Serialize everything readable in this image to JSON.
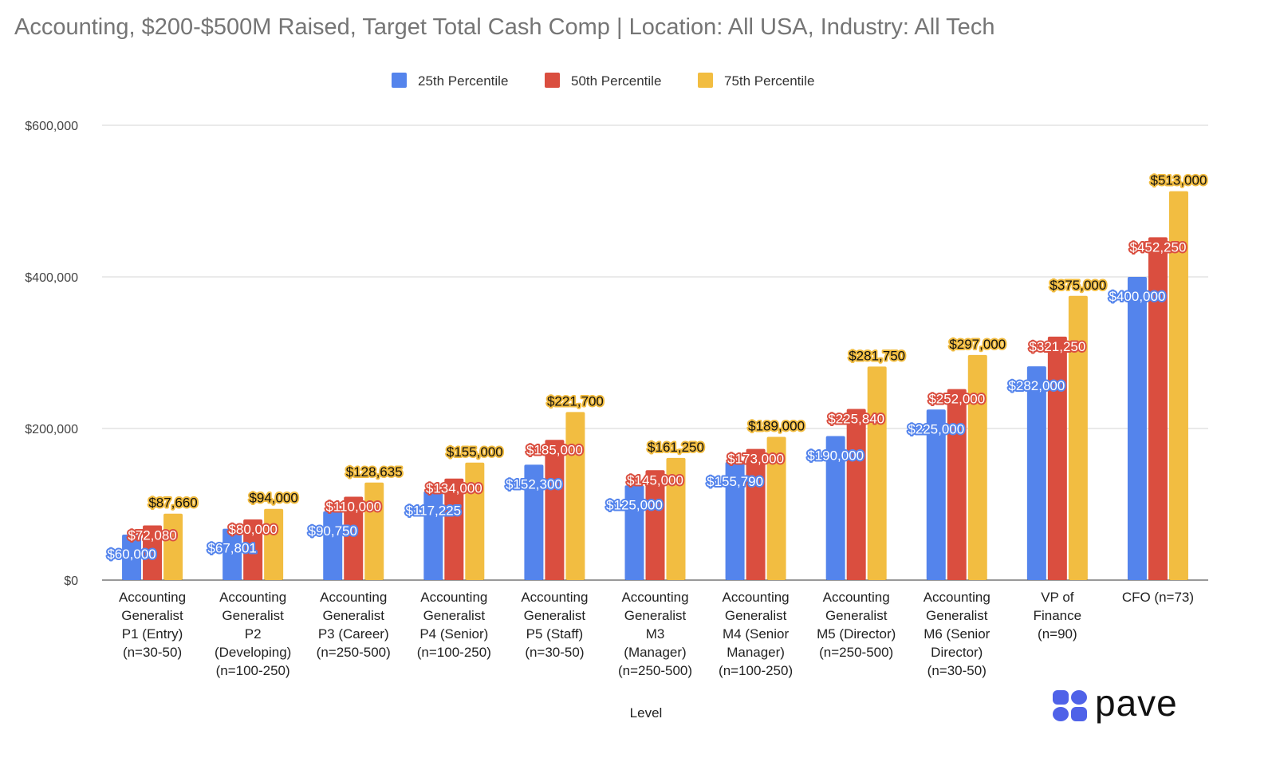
{
  "chart_data": {
    "type": "bar",
    "title": "Accounting, $200-$500M Raised, Target Total Cash Comp | Location: All USA, Industry: All Tech",
    "xlabel": "Level",
    "ylabel": "",
    "ylim": [
      0,
      600000
    ],
    "yticks": [
      0,
      200000,
      400000,
      600000
    ],
    "ytick_labels": [
      "$0",
      "$200,000",
      "$400,000",
      "$600,000"
    ],
    "grid": true,
    "legend": "top-center",
    "categories": [
      [
        "Accounting",
        "Generalist",
        "P1 (Entry)",
        "(n=30-50)"
      ],
      [
        "Accounting",
        "Generalist",
        "P2",
        "(Developing)",
        "(n=100-250)"
      ],
      [
        "Accounting",
        "Generalist",
        "P3 (Career)",
        "(n=250-500)"
      ],
      [
        "Accounting",
        "Generalist",
        "P4 (Senior)",
        "(n=100-250)"
      ],
      [
        "Accounting",
        "Generalist",
        "P5 (Staff)",
        "(n=30-50)"
      ],
      [
        "Accounting",
        "Generalist",
        "M3",
        "(Manager)",
        "(n=250-500)"
      ],
      [
        "Accounting",
        "Generalist",
        "M4 (Senior",
        "Manager)",
        "(n=100-250)"
      ],
      [
        "Accounting",
        "Generalist",
        "M5 (Director)",
        "(n=250-500)"
      ],
      [
        "Accounting",
        "Generalist",
        "M6 (Senior",
        "Director)",
        "(n=30-50)"
      ],
      [
        "VP of",
        "Finance",
        "(n=90)"
      ],
      [
        "CFO (n=73)"
      ]
    ],
    "series": [
      {
        "name": "25th Percentile",
        "color": "#5484ec",
        "values": [
          60000,
          67801,
          90750,
          117225,
          152300,
          125000,
          155790,
          190000,
          225000,
          282000,
          400000
        ]
      },
      {
        "name": "50th Percentile",
        "color": "#da4e3f",
        "values": [
          72080,
          80000,
          110000,
          134000,
          185000,
          145000,
          173000,
          225840,
          252000,
          321250,
          452250
        ]
      },
      {
        "name": "75th Percentile",
        "color": "#f2bd41",
        "values": [
          87660,
          94000,
          128635,
          155000,
          221700,
          161250,
          189000,
          281750,
          297000,
          375000,
          513000
        ]
      }
    ]
  },
  "logo": {
    "text": "pave",
    "color": "#4f62e8"
  }
}
